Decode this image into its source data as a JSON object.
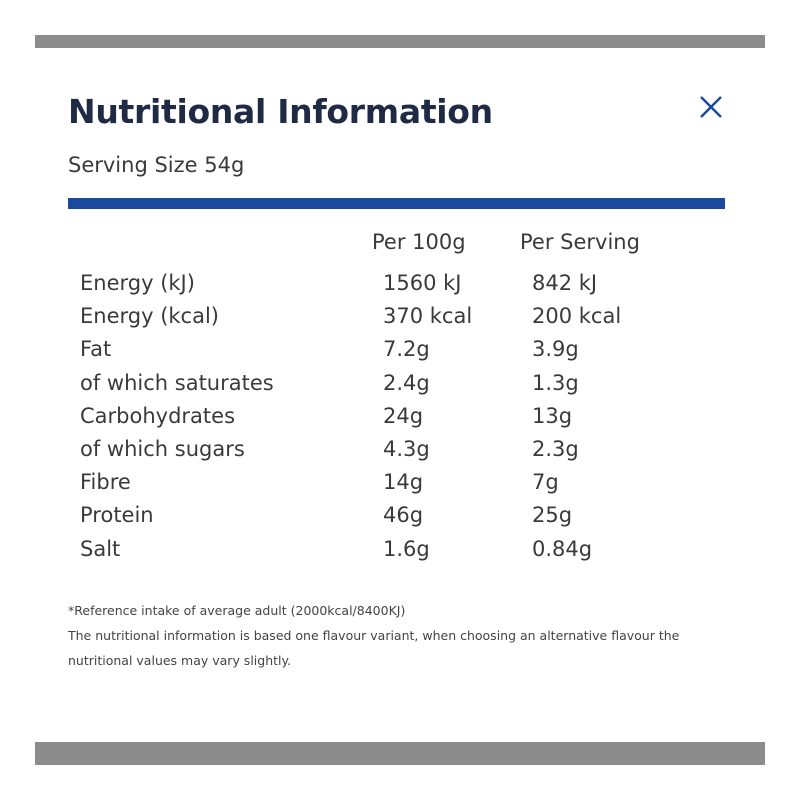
{
  "header": {
    "title": "Nutritional Information",
    "subtitle": "Serving Size 54g"
  },
  "table": {
    "headers": [
      "Per 100g",
      "Per Serving"
    ],
    "rows": [
      [
        "Energy (kJ)",
        "1560 kJ",
        "842 kJ"
      ],
      [
        "Energy (kcal)",
        "370 kcal",
        "200 kcal"
      ],
      [
        "Fat",
        "7.2g",
        "3.9g"
      ],
      [
        "of which saturates",
        "2.4g",
        "1.3g"
      ],
      [
        "Carbohydrates",
        "24g",
        "13g"
      ],
      [
        "of which sugars",
        "4.3g",
        "2.3g"
      ],
      [
        "Fibre",
        "14g",
        "7g"
      ],
      [
        "Protein",
        "46g",
        "25g"
      ],
      [
        "Salt",
        "1.6g",
        "0.84g"
      ]
    ]
  },
  "notes": [
    "*Reference intake of average adult (2000kcal/8400KJ)",
    "The nutritional information is based one flavour variant, when choosing an alternative flavour the nutritional values may vary slightly."
  ]
}
